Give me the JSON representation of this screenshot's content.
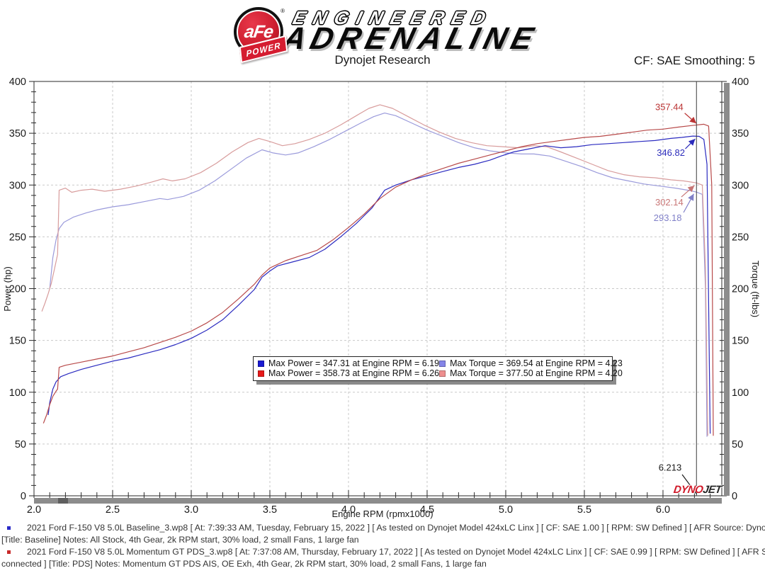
{
  "header": {
    "logo": {
      "afe": "aFe",
      "registered": "®",
      "power": "POWER",
      "engineered": "ENGINEERED",
      "adrenaline": "ADRENALINE"
    },
    "subtitle": "Dynojet Research",
    "cf_label": "CF: SAE Smoothing: 5"
  },
  "chart_data": {
    "type": "line",
    "xlabel": "Engine RPM (rpmx1000)",
    "ylabel_left": "Power (hp)",
    "ylabel_right": "Torque (ft-lbs)",
    "xlim": [
      2.0,
      6.374
    ],
    "ylim": [
      0,
      400
    ],
    "x_major": 0.5,
    "x_minor": 0.1,
    "y_major": 50,
    "y_minor": 10,
    "grid": "dashed",
    "cursor_rpm": 6.213,
    "series": [
      {
        "name": "baseline-torque",
        "color": "#9a9adb",
        "points": [
          [
            2.1,
            200
          ],
          [
            2.11,
            215
          ],
          [
            2.12,
            230
          ],
          [
            2.14,
            247
          ],
          [
            2.16,
            258
          ],
          [
            2.19,
            264
          ],
          [
            2.25,
            269
          ],
          [
            2.33,
            273
          ],
          [
            2.4,
            276
          ],
          [
            2.5,
            279
          ],
          [
            2.6,
            281
          ],
          [
            2.7,
            284
          ],
          [
            2.8,
            287
          ],
          [
            2.85,
            286
          ],
          [
            2.95,
            289
          ],
          [
            3.05,
            295
          ],
          [
            3.15,
            304
          ],
          [
            3.25,
            315
          ],
          [
            3.35,
            326
          ],
          [
            3.45,
            334
          ],
          [
            3.52,
            331
          ],
          [
            3.6,
            329
          ],
          [
            3.68,
            331
          ],
          [
            3.78,
            337
          ],
          [
            3.88,
            344
          ],
          [
            3.98,
            352
          ],
          [
            4.08,
            360
          ],
          [
            4.16,
            366
          ],
          [
            4.23,
            369.5
          ],
          [
            4.3,
            367
          ],
          [
            4.4,
            360
          ],
          [
            4.5,
            353
          ],
          [
            4.6,
            347
          ],
          [
            4.7,
            341
          ],
          [
            4.8,
            336
          ],
          [
            4.9,
            333
          ],
          [
            5.0,
            331
          ],
          [
            5.1,
            330
          ],
          [
            5.18,
            330
          ],
          [
            5.28,
            328
          ],
          [
            5.38,
            323
          ],
          [
            5.48,
            318
          ],
          [
            5.58,
            312
          ],
          [
            5.68,
            307
          ],
          [
            5.78,
            304
          ],
          [
            5.88,
            301
          ],
          [
            5.98,
            299
          ],
          [
            6.08,
            297
          ],
          [
            6.16,
            295
          ],
          [
            6.213,
            293.2
          ],
          [
            6.25,
            291
          ],
          [
            6.27,
            200
          ],
          [
            6.28,
            57
          ]
        ]
      },
      {
        "name": "pds-torque",
        "color": "#d89c9c",
        "points": [
          [
            2.05,
            178
          ],
          [
            2.07,
            186
          ],
          [
            2.09,
            195
          ],
          [
            2.11,
            205
          ],
          [
            2.13,
            219
          ],
          [
            2.15,
            233
          ],
          [
            2.16,
            295
          ],
          [
            2.2,
            297
          ],
          [
            2.24,
            293
          ],
          [
            2.3,
            295
          ],
          [
            2.37,
            296
          ],
          [
            2.45,
            294
          ],
          [
            2.55,
            296
          ],
          [
            2.65,
            299
          ],
          [
            2.75,
            303
          ],
          [
            2.82,
            306
          ],
          [
            2.88,
            304
          ],
          [
            2.96,
            306
          ],
          [
            3.06,
            312
          ],
          [
            3.16,
            321
          ],
          [
            3.26,
            332
          ],
          [
            3.36,
            341
          ],
          [
            3.43,
            345
          ],
          [
            3.5,
            342
          ],
          [
            3.58,
            338
          ],
          [
            3.66,
            340
          ],
          [
            3.75,
            344
          ],
          [
            3.85,
            350
          ],
          [
            3.95,
            358
          ],
          [
            4.05,
            367
          ],
          [
            4.13,
            374
          ],
          [
            4.2,
            377.5
          ],
          [
            4.28,
            374
          ],
          [
            4.38,
            366
          ],
          [
            4.48,
            358
          ],
          [
            4.58,
            351
          ],
          [
            4.68,
            345
          ],
          [
            4.78,
            341
          ],
          [
            4.88,
            338
          ],
          [
            4.98,
            337
          ],
          [
            5.08,
            336
          ],
          [
            5.18,
            338
          ],
          [
            5.26,
            337
          ],
          [
            5.35,
            332
          ],
          [
            5.45,
            326
          ],
          [
            5.55,
            320
          ],
          [
            5.65,
            314
          ],
          [
            5.75,
            310
          ],
          [
            5.85,
            308
          ],
          [
            5.95,
            307
          ],
          [
            6.05,
            305
          ],
          [
            6.13,
            304
          ],
          [
            6.213,
            302.1
          ],
          [
            6.25,
            300
          ],
          [
            6.27,
            220
          ],
          [
            6.285,
            58
          ]
        ]
      },
      {
        "name": "baseline-power",
        "color": "#2b2bc0",
        "points": [
          [
            2.09,
            78
          ],
          [
            2.1,
            90
          ],
          [
            2.12,
            103
          ],
          [
            2.14,
            110
          ],
          [
            2.17,
            115
          ],
          [
            2.22,
            118
          ],
          [
            2.3,
            122
          ],
          [
            2.4,
            126
          ],
          [
            2.5,
            130
          ],
          [
            2.6,
            133
          ],
          [
            2.7,
            137
          ],
          [
            2.8,
            141
          ],
          [
            2.9,
            146
          ],
          [
            3.0,
            152
          ],
          [
            3.1,
            160
          ],
          [
            3.2,
            170
          ],
          [
            3.3,
            184
          ],
          [
            3.4,
            199
          ],
          [
            3.45,
            211
          ],
          [
            3.5,
            217
          ],
          [
            3.55,
            222
          ],
          [
            3.65,
            226
          ],
          [
            3.75,
            230
          ],
          [
            3.85,
            238
          ],
          [
            3.95,
            250
          ],
          [
            4.05,
            263
          ],
          [
            4.15,
            278
          ],
          [
            4.23,
            295
          ],
          [
            4.3,
            300
          ],
          [
            4.4,
            305
          ],
          [
            4.5,
            309
          ],
          [
            4.6,
            313
          ],
          [
            4.7,
            317
          ],
          [
            4.8,
            320
          ],
          [
            4.9,
            324
          ],
          [
            4.97,
            328
          ],
          [
            5.05,
            332
          ],
          [
            5.15,
            335
          ],
          [
            5.25,
            338
          ],
          [
            5.35,
            336
          ],
          [
            5.45,
            337
          ],
          [
            5.55,
            339
          ],
          [
            5.65,
            340
          ],
          [
            5.75,
            341
          ],
          [
            5.85,
            342
          ],
          [
            5.95,
            343
          ],
          [
            6.05,
            345
          ],
          [
            6.12,
            346
          ],
          [
            6.19,
            347.3
          ],
          [
            6.23,
            347
          ],
          [
            6.26,
            344
          ],
          [
            6.28,
            320
          ],
          [
            6.3,
            60
          ]
        ]
      },
      {
        "name": "pds-power",
        "color": "#b84a4a",
        "points": [
          [
            2.06,
            70
          ],
          [
            2.08,
            78
          ],
          [
            2.1,
            88
          ],
          [
            2.12,
            96
          ],
          [
            2.14,
            101
          ],
          [
            2.15,
            103
          ],
          [
            2.16,
            124
          ],
          [
            2.2,
            126
          ],
          [
            2.3,
            129
          ],
          [
            2.4,
            132
          ],
          [
            2.5,
            135
          ],
          [
            2.6,
            139
          ],
          [
            2.7,
            143
          ],
          [
            2.8,
            148
          ],
          [
            2.9,
            153
          ],
          [
            3.0,
            159
          ],
          [
            3.1,
            167
          ],
          [
            3.2,
            177
          ],
          [
            3.3,
            190
          ],
          [
            3.4,
            204
          ],
          [
            3.45,
            213
          ],
          [
            3.5,
            220
          ],
          [
            3.6,
            227
          ],
          [
            3.7,
            232
          ],
          [
            3.8,
            237
          ],
          [
            3.9,
            247
          ],
          [
            4.0,
            259
          ],
          [
            4.1,
            272
          ],
          [
            4.2,
            287
          ],
          [
            4.3,
            298
          ],
          [
            4.4,
            305
          ],
          [
            4.5,
            311
          ],
          [
            4.6,
            316
          ],
          [
            4.7,
            321
          ],
          [
            4.8,
            325
          ],
          [
            4.9,
            329
          ],
          [
            5.0,
            333
          ],
          [
            5.1,
            337
          ],
          [
            5.2,
            340
          ],
          [
            5.3,
            342
          ],
          [
            5.4,
            344
          ],
          [
            5.5,
            346
          ],
          [
            5.6,
            347
          ],
          [
            5.7,
            349
          ],
          [
            5.8,
            351
          ],
          [
            5.9,
            353
          ],
          [
            6.0,
            354
          ],
          [
            6.1,
            356
          ],
          [
            6.18,
            357.4
          ],
          [
            6.26,
            358.7
          ],
          [
            6.29,
            357
          ],
          [
            6.31,
            300
          ],
          [
            6.32,
            58
          ]
        ]
      }
    ],
    "max_markers": {
      "baseline_max_power": {
        "value": 347.31,
        "rpm": 6.19
      },
      "pds_max_power": {
        "value": 358.73,
        "rpm": 6.26
      },
      "baseline_max_torque": {
        "value": 369.54,
        "rpm": 4.23
      },
      "pds_max_torque": {
        "value": 377.5,
        "rpm": 4.2
      }
    },
    "annotations": [
      {
        "text": "357.44",
        "color": "#bb3434",
        "label": [
          6.04,
          375
        ],
        "line": [
          [
            6.138,
            369.4
          ],
          [
            6.212,
            359.5
          ]
        ],
        "arrow": true
      },
      {
        "text": "346.82",
        "color": "#2b2bbb",
        "label": [
          6.05,
          331
        ],
        "line": [
          [
            6.142,
            335.0
          ],
          [
            6.205,
            344.5
          ]
        ],
        "arrow": true
      },
      {
        "text": "302.14",
        "color": "#c87676",
        "label": [
          6.04,
          283
        ],
        "line": [
          [
            6.117,
            288.5
          ],
          [
            6.2,
            299.5
          ]
        ],
        "arrow": true
      },
      {
        "text": "293.18",
        "color": "#8080c8",
        "label": [
          6.03,
          268
        ],
        "line": [
          [
            6.131,
            273.5
          ],
          [
            6.196,
            291.5
          ]
        ],
        "arrow": true
      },
      {
        "text": "6.213",
        "color": "#1a1a1a",
        "label": [
          6.045,
          27
        ],
        "line": [
          [
            6.122,
            20.5
          ],
          [
            6.215,
            1.5
          ]
        ],
        "arrow": false
      }
    ]
  },
  "legend": {
    "items": [
      {
        "swatch": "#1a1ad2",
        "label": "Max Power = 347.31 at Engine RPM = 6.19"
      },
      {
        "swatch": "#8585e8",
        "label": "Max Torque = 369.54 at Engine RPM = 4.23"
      },
      {
        "swatch": "#e81a1a",
        "label": "Max Power = 358.73 at Engine RPM = 6.26"
      },
      {
        "swatch": "#ee8f8f",
        "label": "Max Torque = 377.50 at Engine RPM = 4.20"
      }
    ]
  },
  "dynojet_logo": {
    "red": "DYNO",
    "dark": "JET"
  },
  "footer": {
    "runs": [
      {
        "bullet_color": "#2a2ac8",
        "line1": "2021 Ford F-150 V8 5.0L Baseline_3.wp8 [ At: 7:39:33 AM, Tuesday, February 15, 2022 ] [ As tested on Dynojet Model 424xLC Linx ] [ CF: SAE 1.00 ] [ RPM: SW Defined ] [ AFR Source: Dynoware RT WB ] [ Linx not connected ]",
        "line2": "[Title: Baseline]  Notes: All Stock, 4th Gear, 2k RPM start, 30% load, 2 small Fans, 1 large fan"
      },
      {
        "bullet_color": "#c82a2a",
        "line1": "2021 Ford F-150 V8 5.0L Momentum GT PDS_3.wp8 [ At: 7:37:08 AM, Thursday, February 17, 2022 ] [ As tested on Dynojet Model 424xLC Linx ] [ CF: SAE 0.99 ] [ RPM: SW Defined ] [ AFR Source: Dynoware RT WB ] [ Linx not",
        "line2": "connected ] [Title: PDS]  Notes:  Momentum GT PDS AIS, OE Exh, 4th Gear, 2k RPM start, 30% load, 2 small Fans, 1 large fan"
      }
    ]
  }
}
